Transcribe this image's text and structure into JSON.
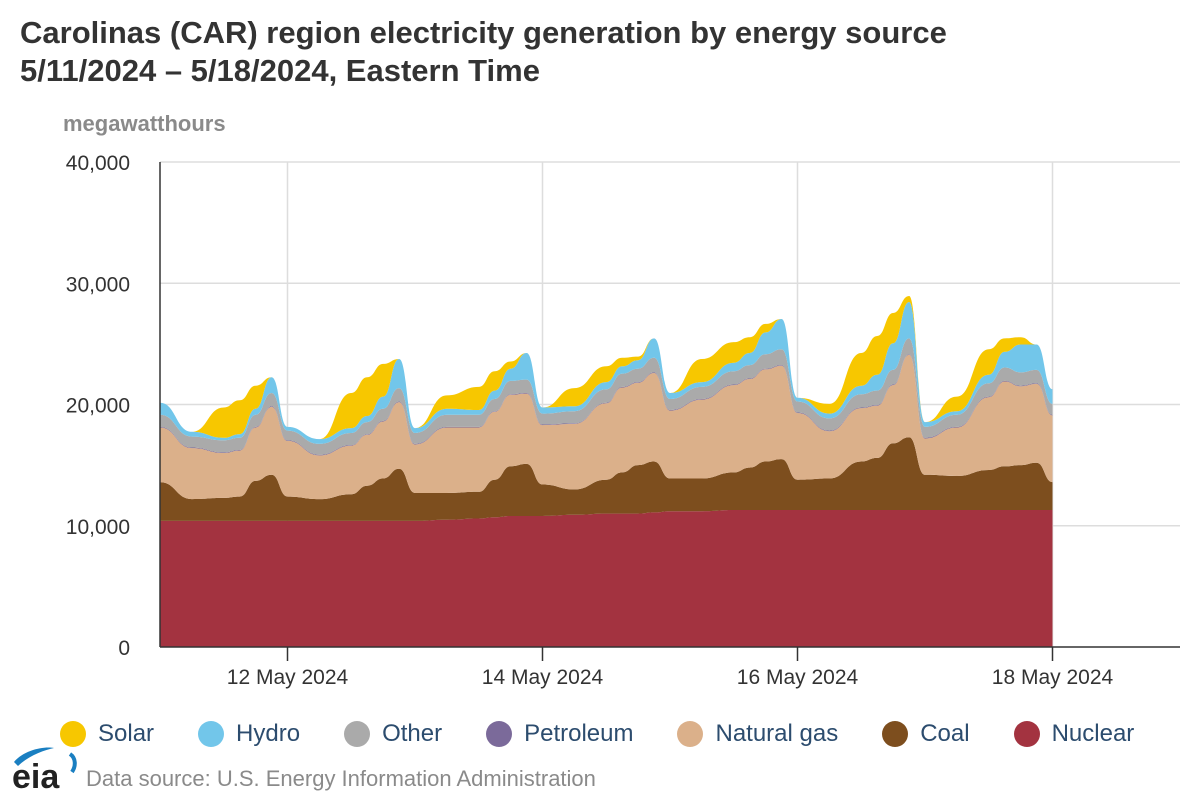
{
  "header": {
    "title_line1": "Carolinas (CAR) region electricity generation by energy source",
    "title_line2": "5/11/2024 – 5/18/2024, Eastern Time"
  },
  "units_label": "megawatthours",
  "footer": {
    "logo_text": "eia",
    "source": "Data source: U.S. Energy Information Administration"
  },
  "chart_data": {
    "type": "area",
    "stacked": true,
    "title": "Carolinas (CAR) region electricity generation by energy source",
    "subtitle": "5/11/2024 – 5/18/2024, Eastern Time",
    "ylabel": "megawatthours",
    "ylim": [
      0,
      40000
    ],
    "yticks": [
      0,
      10000,
      20000,
      30000,
      40000
    ],
    "ytick_labels": [
      "0",
      "10,000",
      "20,000",
      "30,000",
      "40,000"
    ],
    "xlim_days": [
      0,
      8
    ],
    "xticks_days": [
      1,
      3,
      5,
      7
    ],
    "xtick_labels": [
      "12 May 2024",
      "14 May 2024",
      "16 May 2024",
      "18 May 2024"
    ],
    "x_start_label": "5/11/2024 00:00",
    "x_days": [
      0,
      0.25,
      0.5,
      0.625,
      0.75,
      0.875,
      1.0,
      1.25,
      1.5,
      1.625,
      1.75,
      1.875,
      2.0,
      2.25,
      2.5,
      2.625,
      2.75,
      2.875,
      3.0,
      3.25,
      3.5,
      3.625,
      3.75,
      3.875,
      4.0,
      4.25,
      4.5,
      4.625,
      4.75,
      4.875,
      5.0,
      5.25,
      5.5,
      5.625,
      5.75,
      5.875,
      6.0,
      6.25,
      6.5,
      6.625,
      6.75,
      6.875,
      7.0
    ],
    "series": [
      {
        "name": "Nuclear",
        "color": "#a33340",
        "values": [
          10400,
          10400,
          10400,
          10400,
          10400,
          10400,
          10400,
          10400,
          10400,
          10400,
          10400,
          10400,
          10400,
          10500,
          10600,
          10700,
          10800,
          10800,
          10800,
          10900,
          11000,
          11000,
          11000,
          11100,
          11200,
          11200,
          11300,
          11300,
          11300,
          11300,
          11300,
          11300,
          11300,
          11300,
          11300,
          11300,
          11300,
          11300,
          11300,
          11300,
          11300,
          11300,
          11300
        ]
      },
      {
        "name": "Coal",
        "color": "#7d4e1e",
        "values": [
          3200,
          1800,
          1900,
          2000,
          3300,
          3800,
          2000,
          1800,
          2200,
          2900,
          3500,
          4300,
          2300,
          2200,
          2200,
          3100,
          4100,
          4300,
          2600,
          2100,
          2800,
          3400,
          4000,
          4200,
          2700,
          2700,
          3100,
          3500,
          4000,
          4200,
          2500,
          2600,
          4000,
          4300,
          5500,
          6000,
          2900,
          2800,
          3300,
          3600,
          3700,
          3900,
          2300
        ]
      },
      {
        "name": "Natural gas",
        "color": "#dbb08a",
        "values": [
          4500,
          4200,
          3700,
          3800,
          4400,
          5600,
          4600,
          3600,
          4000,
          4200,
          4700,
          5500,
          4000,
          5400,
          5300,
          5600,
          5900,
          5800,
          4900,
          5400,
          6300,
          7000,
          6800,
          7300,
          5600,
          6500,
          7200,
          7300,
          7600,
          7700,
          5500,
          3900,
          4400,
          4300,
          4800,
          6800,
          3000,
          4000,
          6000,
          7000,
          6500,
          6500,
          5500
        ]
      },
      {
        "name": "Petroleum",
        "color": "#7b6a9a",
        "values": [
          50,
          50,
          50,
          50,
          50,
          50,
          50,
          50,
          50,
          50,
          50,
          50,
          50,
          50,
          50,
          50,
          50,
          50,
          50,
          50,
          50,
          50,
          50,
          50,
          50,
          50,
          50,
          50,
          50,
          50,
          50,
          50,
          50,
          50,
          50,
          50,
          50,
          50,
          50,
          50,
          50,
          50,
          50
        ]
      },
      {
        "name": "Other",
        "color": "#aaaaaa",
        "values": [
          1000,
          900,
          1000,
          1000,
          1000,
          1100,
          800,
          900,
          1000,
          1000,
          1000,
          1100,
          900,
          1000,
          1000,
          1000,
          1100,
          1100,
          900,
          1000,
          1100,
          1100,
          1100,
          1200,
          900,
          1000,
          1100,
          1100,
          1200,
          1300,
          900,
          1000,
          1100,
          1200,
          1200,
          1300,
          900,
          1000,
          1100,
          1100,
          1100,
          1100,
          900
        ]
      },
      {
        "name": "Hydro",
        "color": "#72c6ea",
        "values": [
          1000,
          400,
          200,
          300,
          500,
          1300,
          300,
          400,
          400,
          500,
          1000,
          2400,
          400,
          500,
          400,
          700,
          1000,
          2200,
          500,
          400,
          600,
          600,
          700,
          1600,
          500,
          400,
          700,
          1000,
          1800,
          2500,
          300,
          400,
          700,
          1300,
          2200,
          3000,
          400,
          300,
          700,
          1300,
          2300,
          2100,
          1200
        ]
      },
      {
        "name": "Solar",
        "color": "#f7c700",
        "values": [
          0,
          0,
          2500,
          2800,
          1900,
          0,
          0,
          0,
          2900,
          3200,
          2700,
          0,
          0,
          1100,
          1900,
          1600,
          600,
          0,
          0,
          1500,
          1300,
          700,
          300,
          0,
          0,
          1900,
          1700,
          1300,
          700,
          0,
          0,
          800,
          2700,
          3200,
          2500,
          500,
          0,
          1200,
          2100,
          1100,
          600,
          0,
          0
        ]
      }
    ]
  }
}
